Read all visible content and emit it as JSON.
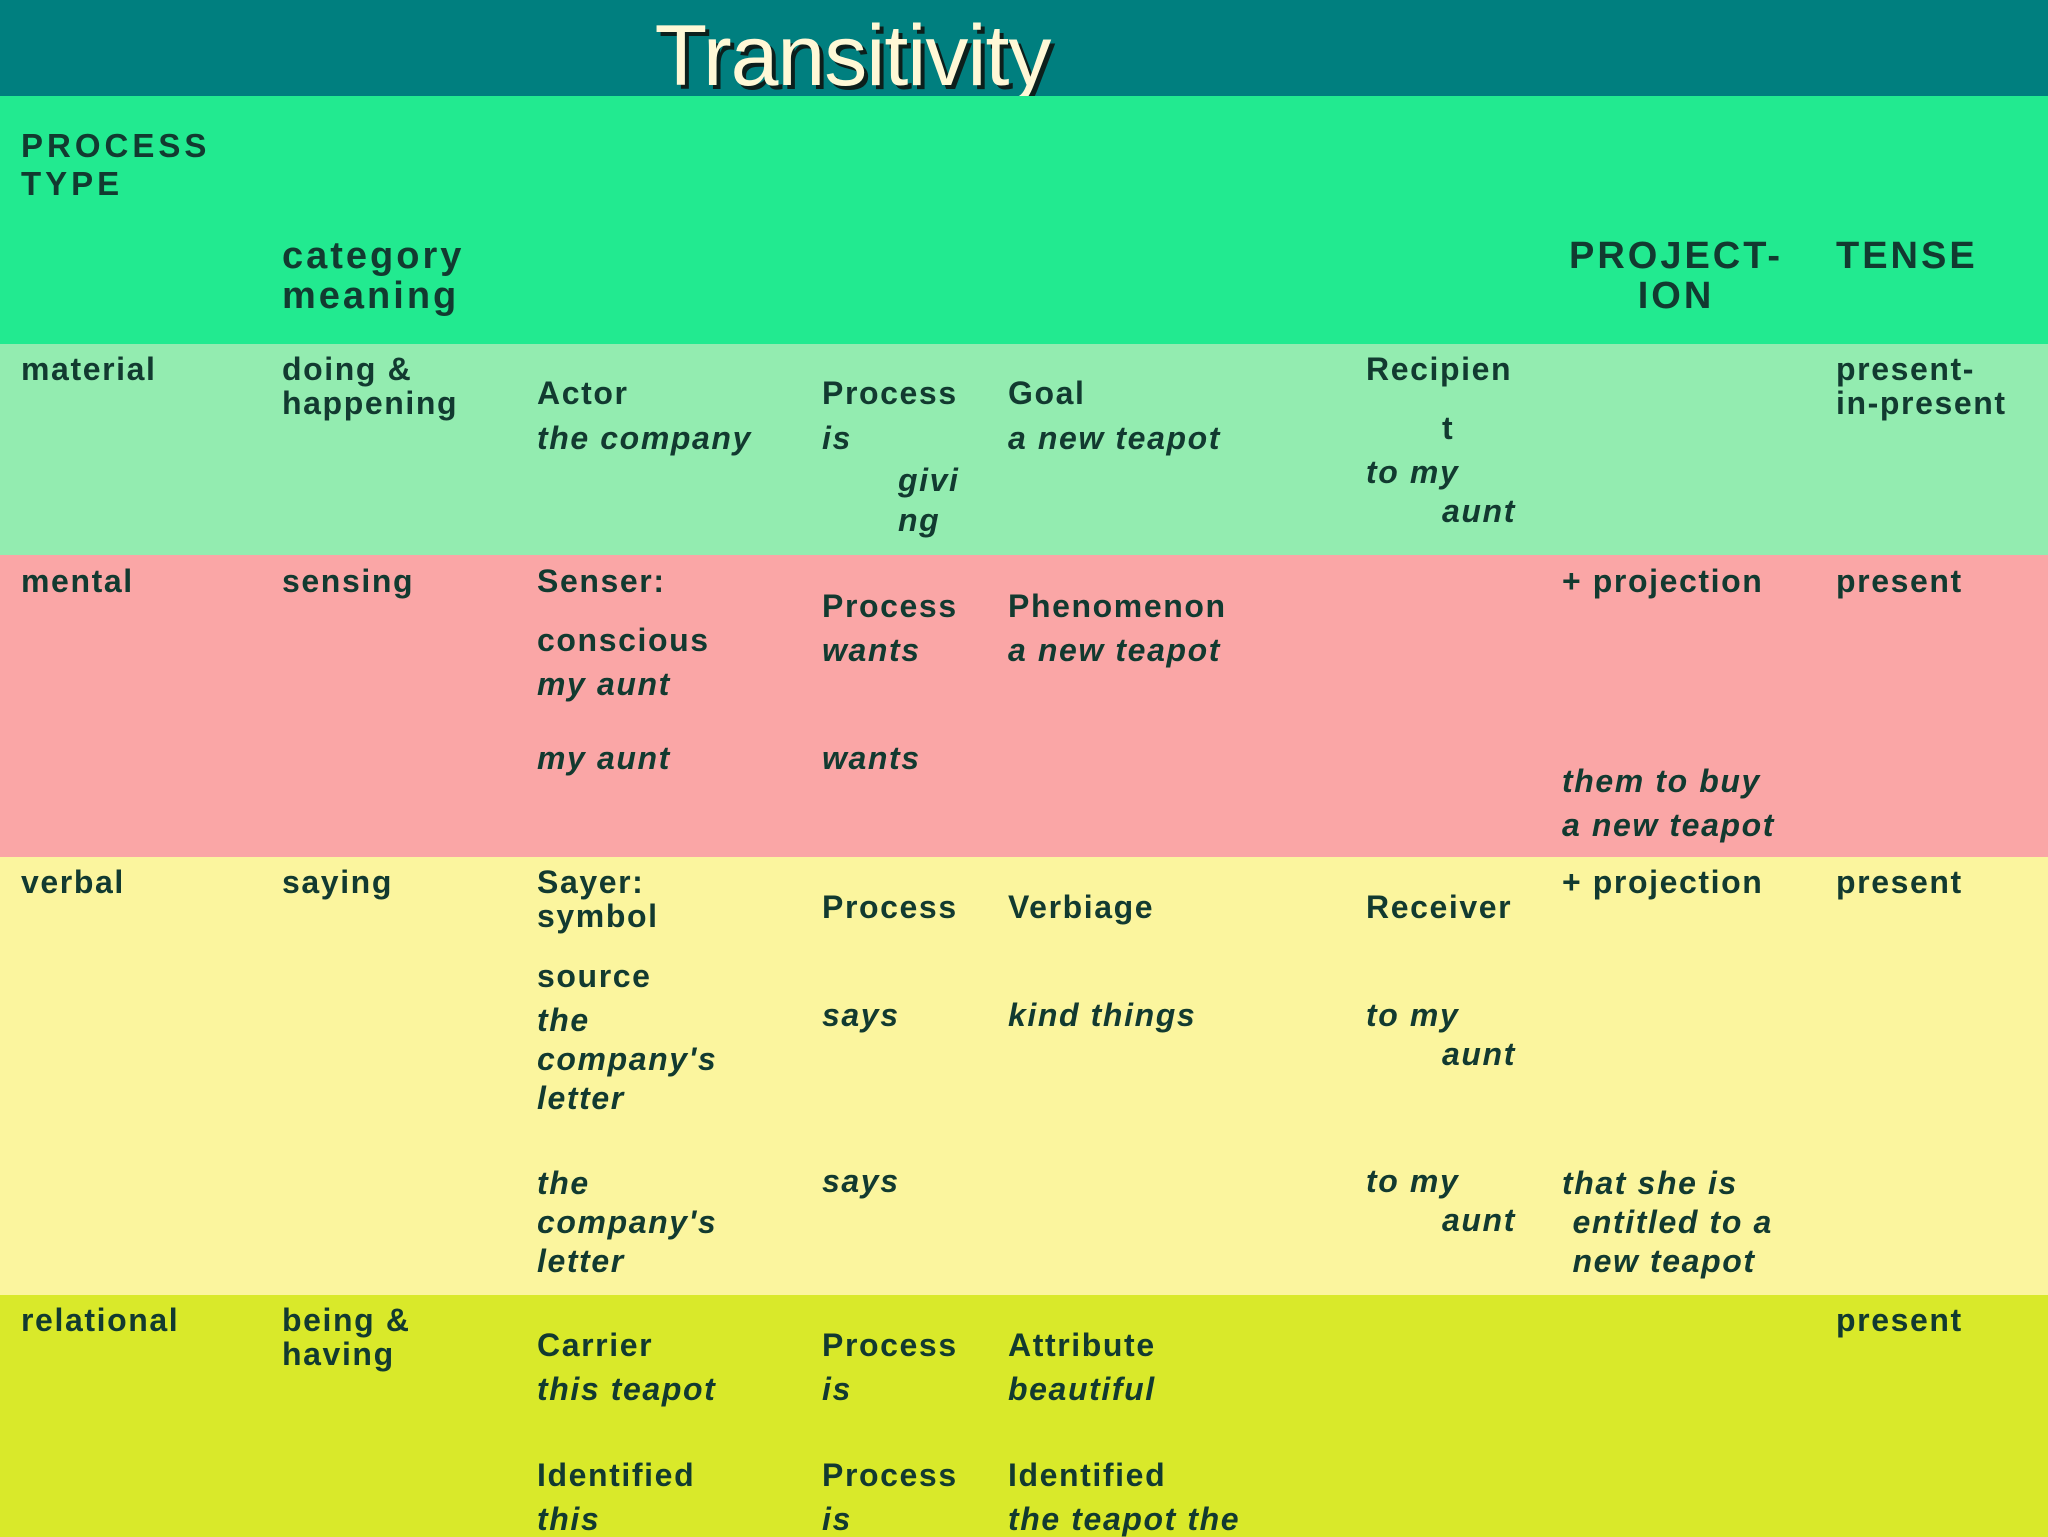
{
  "title": "Transitivity",
  "colors": {
    "title_bar": "#007f7f",
    "title_text": "#fff8d6",
    "header_band": "#22ea90",
    "material_band": "#93ecb0",
    "mental_band": "#faa6a6",
    "verbal_band": "#fbf59e",
    "relational_band": "#d9e92a",
    "text": "#123a30"
  },
  "header": {
    "process_type": "PROCESS\nTYPE",
    "category_meaning": "category\nmeaning",
    "projection": "PROJECT-\nION",
    "tense": "TENSE"
  },
  "material": {
    "type": "material",
    "meaning": "doing &\nhappening",
    "actor_label": "Actor",
    "actor_example": "the company",
    "process_label": "Process",
    "process_example_1": "is",
    "process_example_2": "givi\nng",
    "goal_label": "Goal",
    "goal_example": "a new teapot",
    "recipient_label": "Recipien",
    "recipient_label_cont": "t",
    "recipient_example_1": "to my",
    "recipient_example_2": "aunt",
    "tense": "present-\nin-present"
  },
  "mental": {
    "type": "mental",
    "meaning": "sensing",
    "senser_label": "Senser:",
    "senser_sublabel": "conscious",
    "senser_example_1": "my aunt",
    "process_label": "Process",
    "process_example_1": "wants",
    "phenomenon_label": "Phenomenon",
    "phenomenon_example": "a new teapot",
    "projection_label": "+ projection",
    "tense": "present",
    "senser_example_2": "my aunt",
    "process_example_2": "wants",
    "projection_example": "them to buy\na new teapot"
  },
  "verbal": {
    "type": "verbal",
    "meaning": "saying",
    "sayer_label": "Sayer:\nsymbol",
    "sayer_sublabel": "source",
    "sayer_example_1": "the\ncompany's\nletter",
    "process_label": "Process",
    "process_example_1": "says",
    "verbiage_label": "Verbiage",
    "verbiage_example": "kind things",
    "receiver_label": "Receiver",
    "receiver_example_1a": "to my",
    "receiver_example_1b": "aunt",
    "projection_label": "+ projection",
    "tense": "present",
    "sayer_example_2": "the\ncompany's\nletter",
    "process_example_2": "says",
    "receiver_example_2a": "to my",
    "receiver_example_2b": "aunt",
    "projection_example": "that she is\n entitled to a\n new teapot"
  },
  "relational": {
    "type": "relational",
    "meaning": "being &\nhaving",
    "carrier_label": "Carrier",
    "carrier_example": "this teapot",
    "process_label_1": "Process",
    "process_example_1": "is",
    "attribute_label": "Attribute",
    "attribute_example": "beautiful",
    "tense": "present",
    "identified_label": "Identified",
    "identified_example": "this",
    "process_label_2": "Process",
    "process_example_2": "is",
    "identifier_label": "Identified",
    "identifier_example": "the teapot the"
  }
}
